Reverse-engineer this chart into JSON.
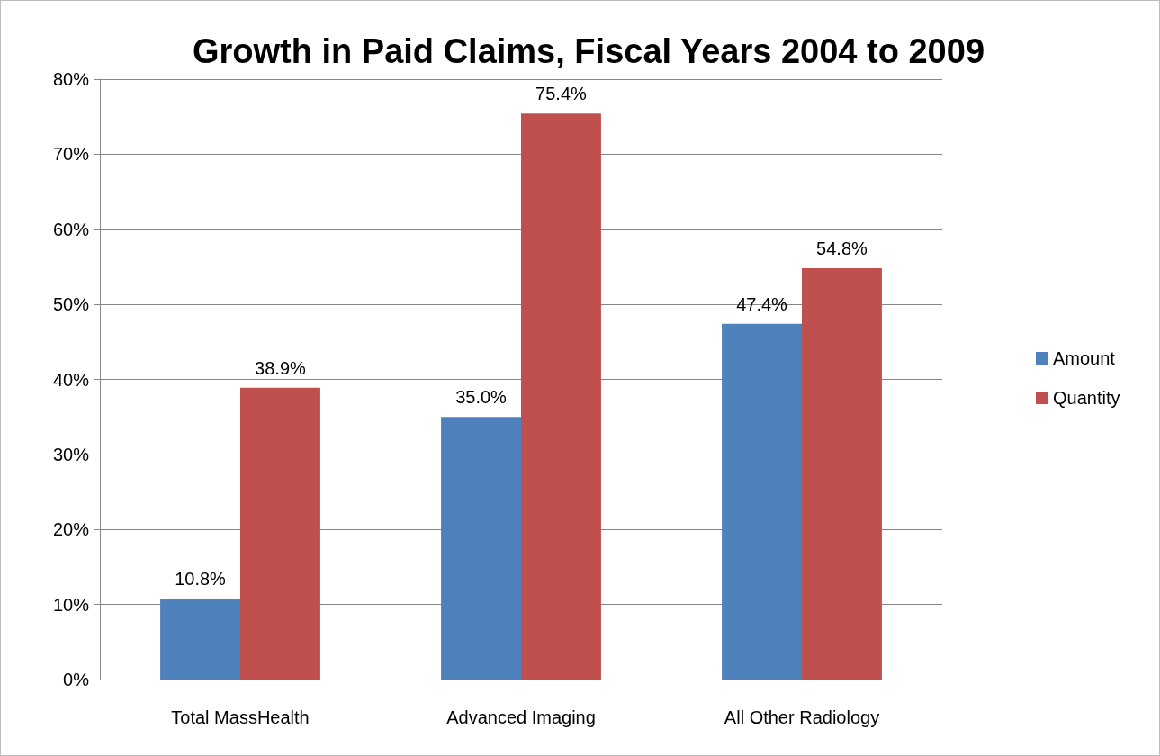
{
  "chart_data": {
    "type": "bar",
    "title": "Growth in Paid Claims, Fiscal Years 2004 to 2009",
    "categories": [
      "Total MassHealth",
      "Advanced Imaging",
      "All Other Radiology"
    ],
    "series": [
      {
        "name": "Amount",
        "color": "#4f81bd",
        "values": [
          10.8,
          35.0,
          47.4
        ],
        "value_labels": [
          "10.8%",
          "35.0%",
          "47.4%"
        ]
      },
      {
        "name": "Quantity",
        "color": "#c0504d",
        "values": [
          38.9,
          75.4,
          54.8
        ],
        "value_labels": [
          "38.9%",
          "75.4%",
          "54.8%"
        ]
      }
    ],
    "ylim": [
      0,
      80
    ],
    "yticks": [
      {
        "value": 0,
        "label": "0%"
      },
      {
        "value": 10,
        "label": "10%"
      },
      {
        "value": 20,
        "label": "20%"
      },
      {
        "value": 30,
        "label": "30%"
      },
      {
        "value": 40,
        "label": "40%"
      },
      {
        "value": 50,
        "label": "50%"
      },
      {
        "value": 60,
        "label": "60%"
      },
      {
        "value": 70,
        "label": "70%"
      },
      {
        "value": 80,
        "label": "80%"
      }
    ],
    "grid": "y",
    "legend": "right"
  }
}
